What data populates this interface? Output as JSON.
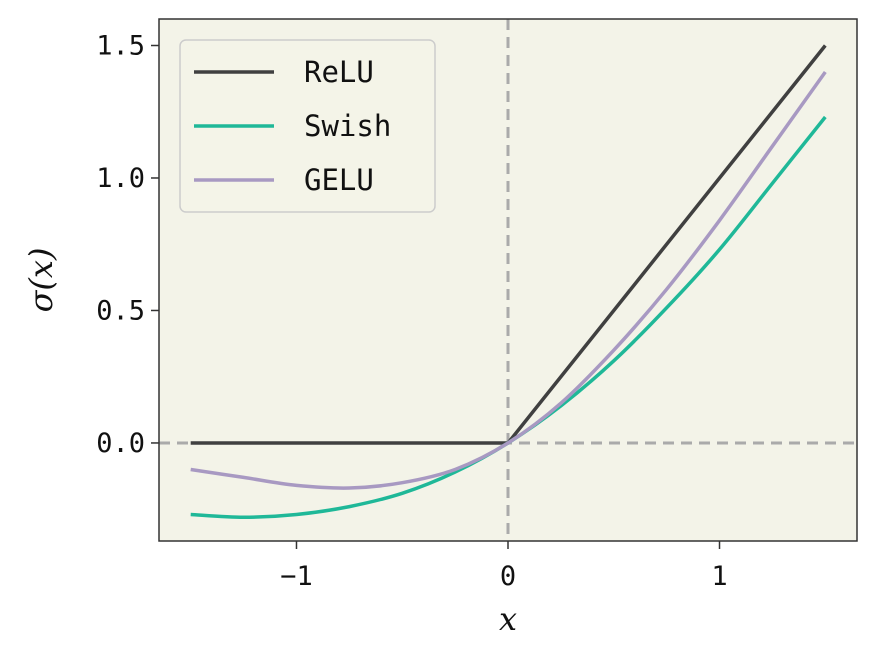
{
  "chart_data": {
    "type": "line",
    "title": "",
    "xlabel": "x",
    "ylabel": "σ(x)",
    "xlim": [
      -1.65,
      1.65
    ],
    "ylim": [
      -0.37,
      1.6
    ],
    "x_ticks": [
      -1,
      0,
      1
    ],
    "x_tick_labels": [
      "−1",
      "0",
      "1"
    ],
    "y_ticks": [
      0.0,
      0.5,
      1.0,
      1.5
    ],
    "y_tick_labels": [
      "0.0",
      "0.5",
      "1.0",
      "1.5"
    ],
    "grid": false,
    "reference_lines": [
      {
        "orientation": "vertical",
        "value": 0,
        "style": "dashed",
        "color": "#aaaaaa"
      },
      {
        "orientation": "horizontal",
        "value": 0,
        "style": "dashed",
        "color": "#aaaaaa"
      }
    ],
    "legend_position": "top-left",
    "background_color": "#f3f3e8",
    "x": [
      -1.5,
      -1.25,
      -1.0,
      -0.75,
      -0.5,
      -0.25,
      0.0,
      0.25,
      0.5,
      0.75,
      1.0,
      1.25,
      1.5
    ],
    "series": [
      {
        "name": "ReLU",
        "color": "#404040",
        "values": [
          0.0,
          0.0,
          0.0,
          0.0,
          0.0,
          0.0,
          0.0,
          0.25,
          0.5,
          0.75,
          1.0,
          1.25,
          1.5
        ]
      },
      {
        "name": "Swish",
        "color": "#1fb898",
        "values": [
          -0.27,
          -0.28,
          -0.27,
          -0.24,
          -0.19,
          -0.11,
          0.0,
          0.14,
          0.31,
          0.51,
          0.73,
          0.98,
          1.23
        ]
      },
      {
        "name": "GELU",
        "color": "#a899c2",
        "values": [
          -0.1,
          -0.13,
          -0.16,
          -0.17,
          -0.15,
          -0.1,
          0.0,
          0.15,
          0.35,
          0.58,
          0.84,
          1.12,
          1.4
        ]
      }
    ]
  }
}
